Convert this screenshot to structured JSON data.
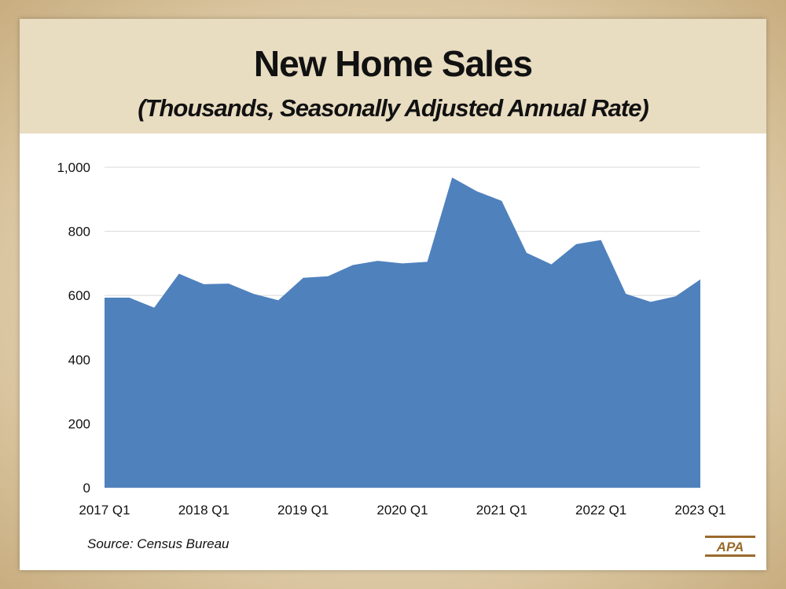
{
  "title": "New Home Sales",
  "subtitle": "(Thousands, Seasonally Adjusted Annual Rate)",
  "source": "Source:  Census Bureau",
  "logo_text": "APA",
  "colors": {
    "fill": "#4f81bd",
    "header": "#e8dcc1",
    "logo": "#9a6a2c"
  },
  "chart_data": {
    "type": "area",
    "title": "New Home Sales",
    "subtitle": "(Thousands, Seasonally Adjusted Annual Rate)",
    "xlabel": "",
    "ylabel": "",
    "ylim": [
      0,
      1000
    ],
    "yticks": [
      0,
      200,
      400,
      600,
      800,
      1000
    ],
    "ytick_labels": [
      "0",
      "200",
      "400",
      "600",
      "800",
      "1,000"
    ],
    "x": [
      "2017 Q1",
      "2017 Q2",
      "2017 Q3",
      "2017 Q4",
      "2018 Q1",
      "2018 Q2",
      "2018 Q3",
      "2018 Q4",
      "2019 Q1",
      "2019 Q2",
      "2019 Q3",
      "2019 Q4",
      "2020 Q1",
      "2020 Q2",
      "2020 Q3",
      "2020 Q4",
      "2021 Q1",
      "2021 Q2",
      "2021 Q3",
      "2021 Q4",
      "2022 Q1",
      "2022 Q2",
      "2022 Q3",
      "2022 Q4",
      "2023 Q1"
    ],
    "xtick_labels": [
      "2017 Q1",
      "2018 Q1",
      "2019 Q1",
      "2020 Q1",
      "2021 Q1",
      "2022 Q1",
      "2023 Q1"
    ],
    "series": [
      {
        "name": "New Home Sales",
        "values": [
          593,
          593,
          562,
          668,
          635,
          637,
          605,
          585,
          655,
          660,
          695,
          708,
          700,
          705,
          968,
          925,
          895,
          733,
          697,
          760,
          773,
          605,
          580,
          597,
          650
        ]
      }
    ],
    "grid": true
  }
}
